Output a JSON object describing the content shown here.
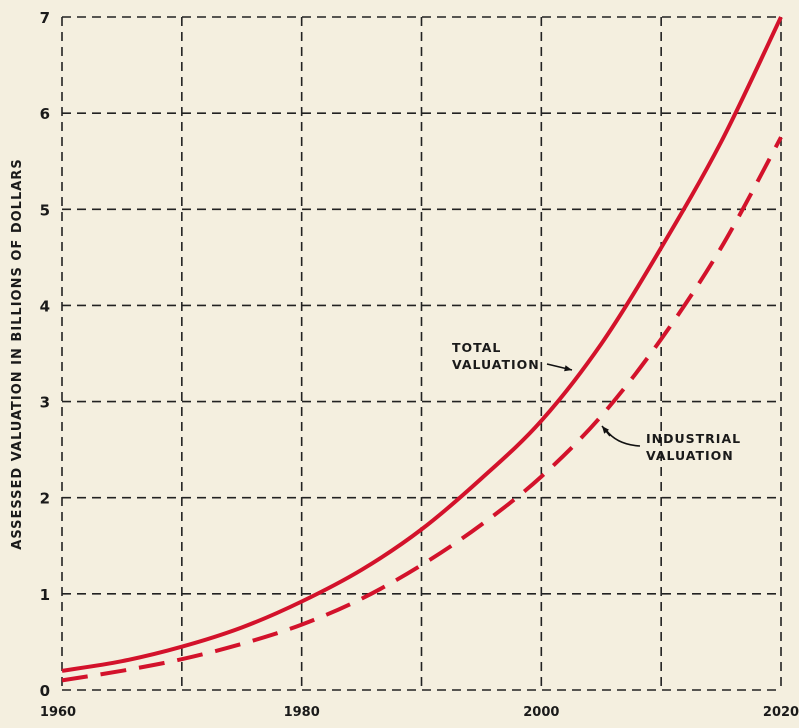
{
  "chart_data": {
    "type": "line",
    "title": "",
    "xlabel": "",
    "ylabel": "ASSESSED VALUATION IN BILLIONS OF DOLLARS",
    "xlim": [
      1960,
      2020
    ],
    "ylim": [
      0,
      7
    ],
    "x_ticks": [
      1960,
      1980,
      2000,
      2020
    ],
    "x_tick_labels": [
      "1960",
      "1980",
      "2000",
      "2020"
    ],
    "x_grid": [
      1960,
      1970,
      1980,
      1990,
      2000,
      2010,
      2020
    ],
    "y_ticks": [
      0,
      1,
      2,
      3,
      4,
      5,
      6,
      7
    ],
    "y_tick_labels": [
      "0",
      "1",
      "2",
      "3",
      "4",
      "5",
      "6",
      "7"
    ],
    "grid": true,
    "grid_style": "dashed",
    "series": [
      {
        "name": "TOTAL VALUATION",
        "color": "#d3122b",
        "line_style": "solid",
        "x": [
          1960,
          1965,
          1970,
          1975,
          1980,
          1985,
          1990,
          1995,
          2000,
          2005,
          2010,
          2015,
          2020
        ],
        "y": [
          0.2,
          0.3,
          0.45,
          0.65,
          0.92,
          1.25,
          1.67,
          2.2,
          2.8,
          3.6,
          4.6,
          5.7,
          7.0
        ]
      },
      {
        "name": "INDUSTRIAL VALUATION",
        "color": "#d3122b",
        "line_style": "dashed",
        "x": [
          1960,
          1965,
          1970,
          1975,
          1980,
          1985,
          1990,
          1995,
          2000,
          2005,
          2010,
          2015,
          2020
        ],
        "y": [
          0.1,
          0.2,
          0.32,
          0.48,
          0.68,
          0.95,
          1.3,
          1.72,
          2.22,
          2.85,
          3.65,
          4.6,
          5.75
        ]
      }
    ],
    "annotations": [
      {
        "lines": [
          "TOTAL",
          "VALUATION"
        ],
        "target_series": "TOTAL VALUATION"
      },
      {
        "lines": [
          "INDUSTRIAL",
          "VALUATION"
        ],
        "target_series": "INDUSTRIAL VALUATION"
      }
    ]
  }
}
